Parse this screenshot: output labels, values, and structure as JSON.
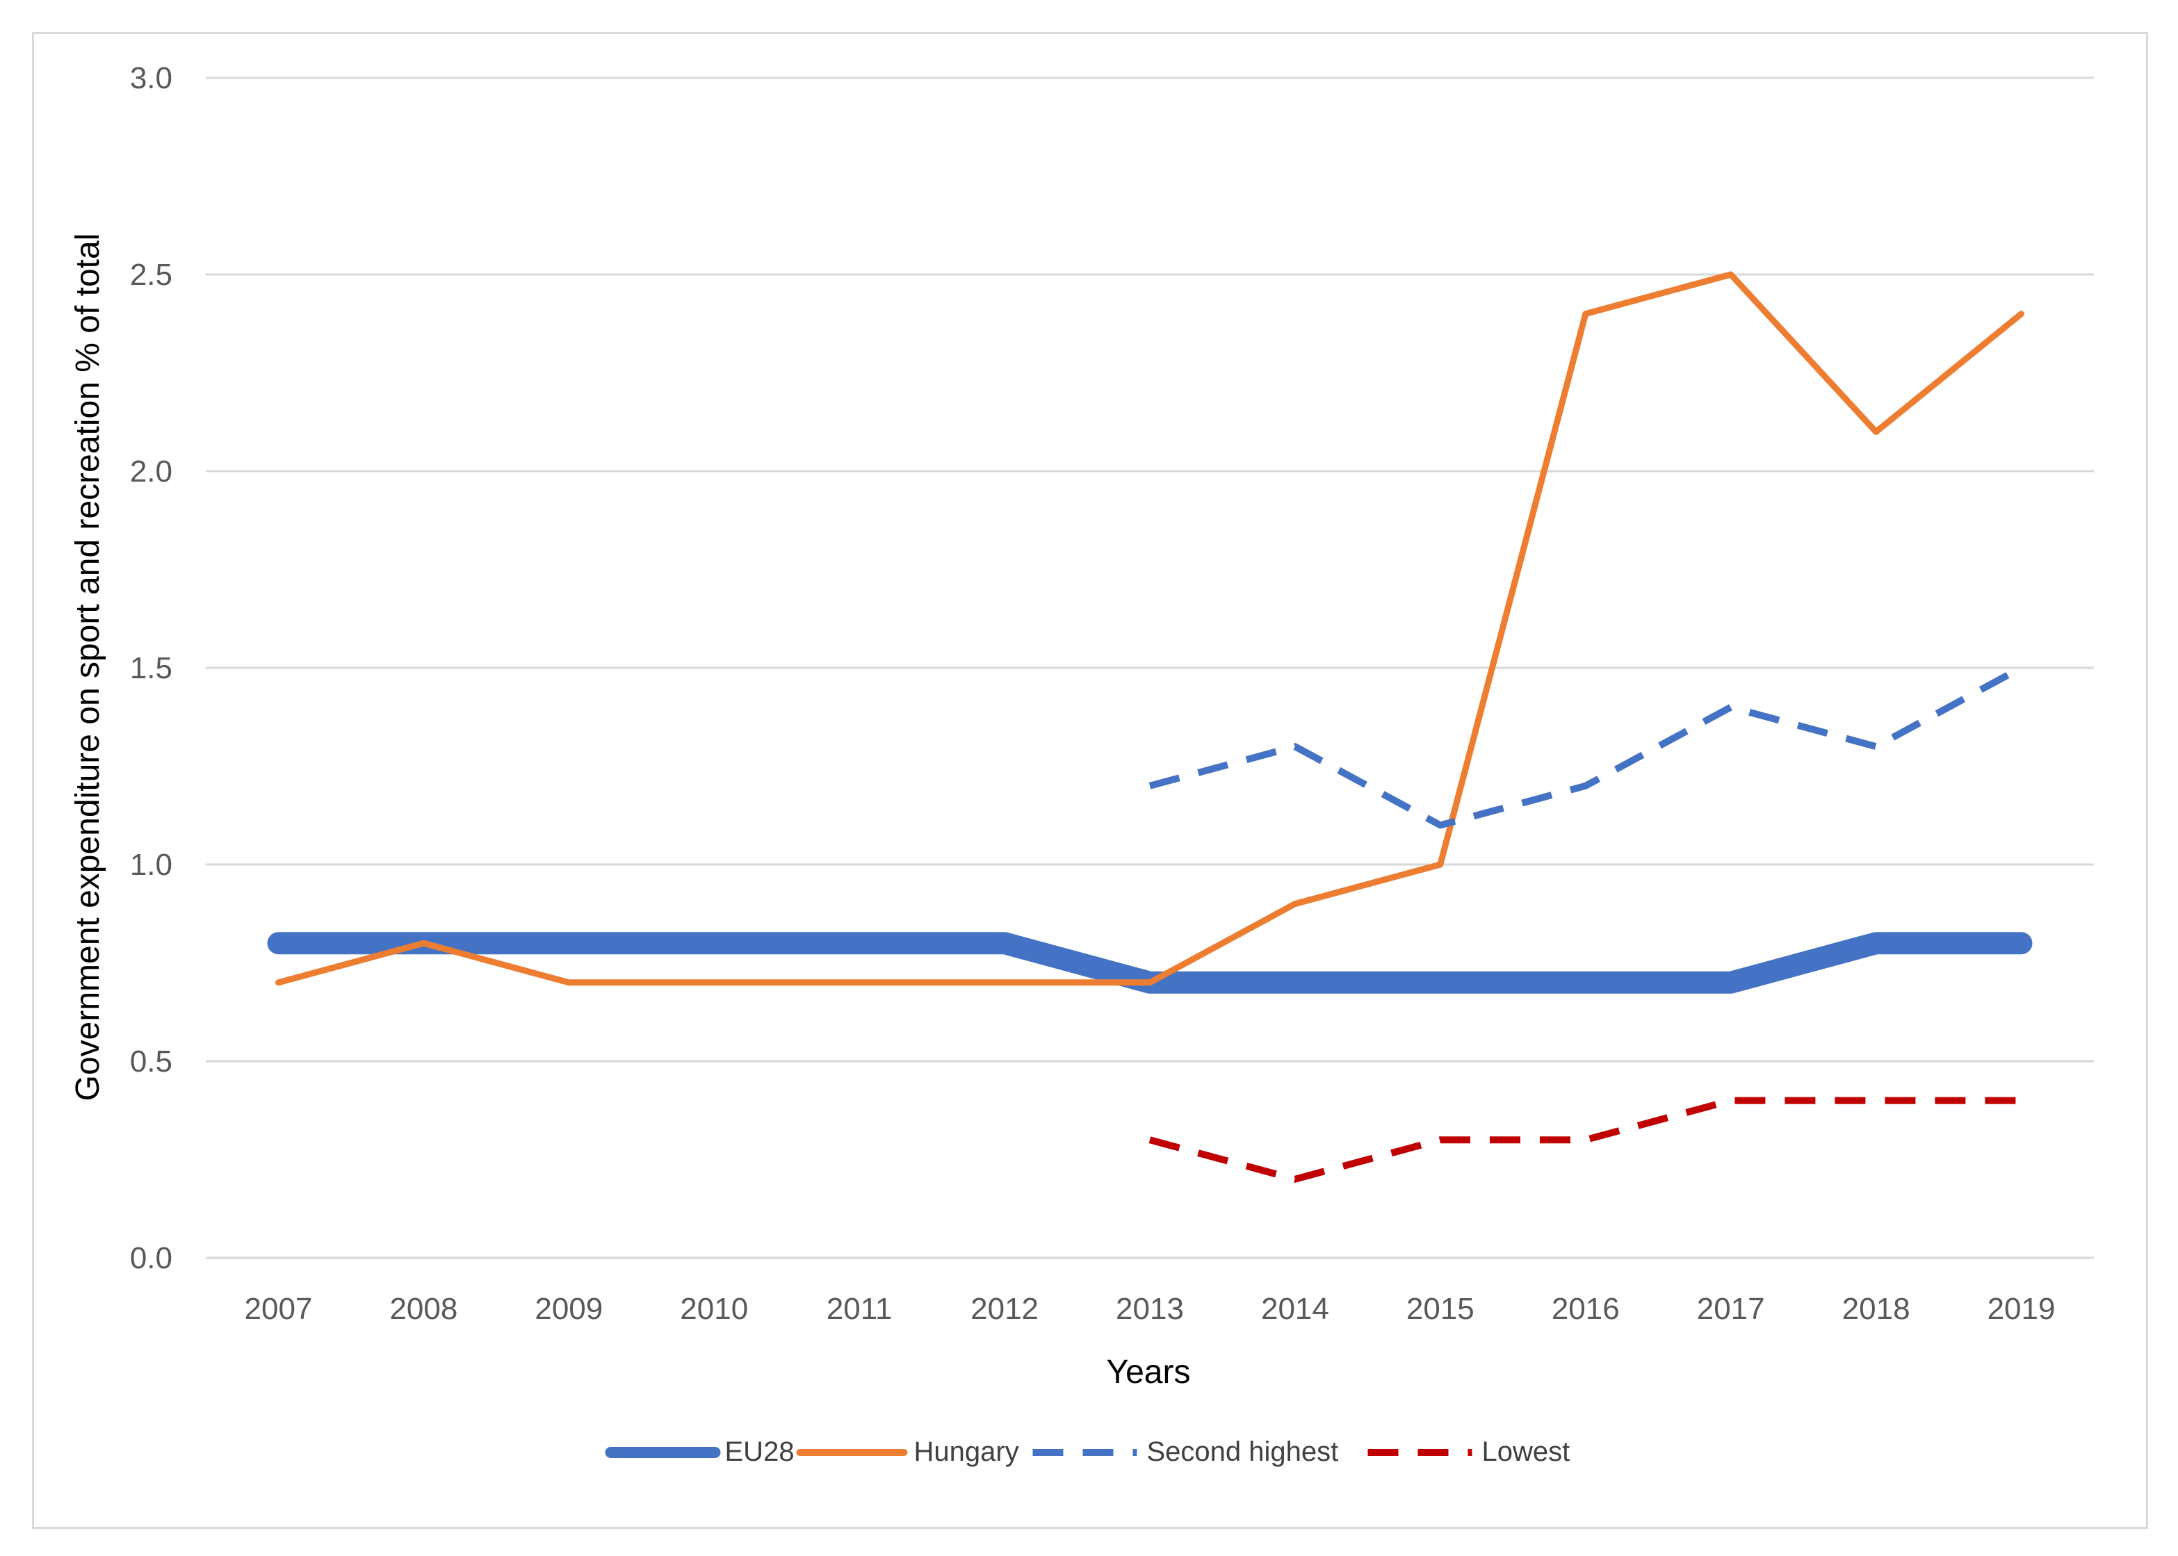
{
  "chart_data": {
    "type": "line",
    "title": "",
    "xlabel": "Years",
    "ylabel": "Government  expenditure on sport and recreation % of total",
    "ylim": [
      0,
      3.0
    ],
    "yticks": [
      "0.0",
      "0.5",
      "1.0",
      "1.5",
      "2.0",
      "2.5",
      "3.0"
    ],
    "categories": [
      "2007",
      "2008",
      "2009",
      "2010",
      "2011",
      "2012",
      "2013",
      "2014",
      "2015",
      "2016",
      "2017",
      "2018",
      "2019"
    ],
    "grid": true,
    "legend_position": "bottom",
    "series": [
      {
        "name": "EU28",
        "color": "#4472c4",
        "style": "solid-thick",
        "values": [
          0.8,
          0.8,
          0.8,
          0.8,
          0.8,
          0.8,
          0.7,
          0.7,
          0.7,
          0.7,
          0.7,
          0.8,
          0.8
        ]
      },
      {
        "name": "Hungary",
        "color": "#ed7d31",
        "style": "solid",
        "values": [
          0.7,
          0.8,
          0.7,
          0.7,
          0.7,
          0.7,
          0.7,
          0.9,
          1.0,
          2.4,
          2.5,
          2.1,
          2.4
        ]
      },
      {
        "name": "Second highest",
        "color": "#4472c4",
        "style": "dashed",
        "values": [
          null,
          null,
          null,
          null,
          null,
          null,
          1.2,
          1.3,
          1.1,
          1.2,
          1.4,
          1.3,
          1.5
        ]
      },
      {
        "name": "Lowest",
        "color": "#c00000",
        "style": "dashed",
        "values": [
          null,
          null,
          null,
          null,
          null,
          null,
          0.3,
          0.2,
          0.3,
          0.3,
          0.4,
          0.4,
          0.4
        ]
      }
    ]
  }
}
